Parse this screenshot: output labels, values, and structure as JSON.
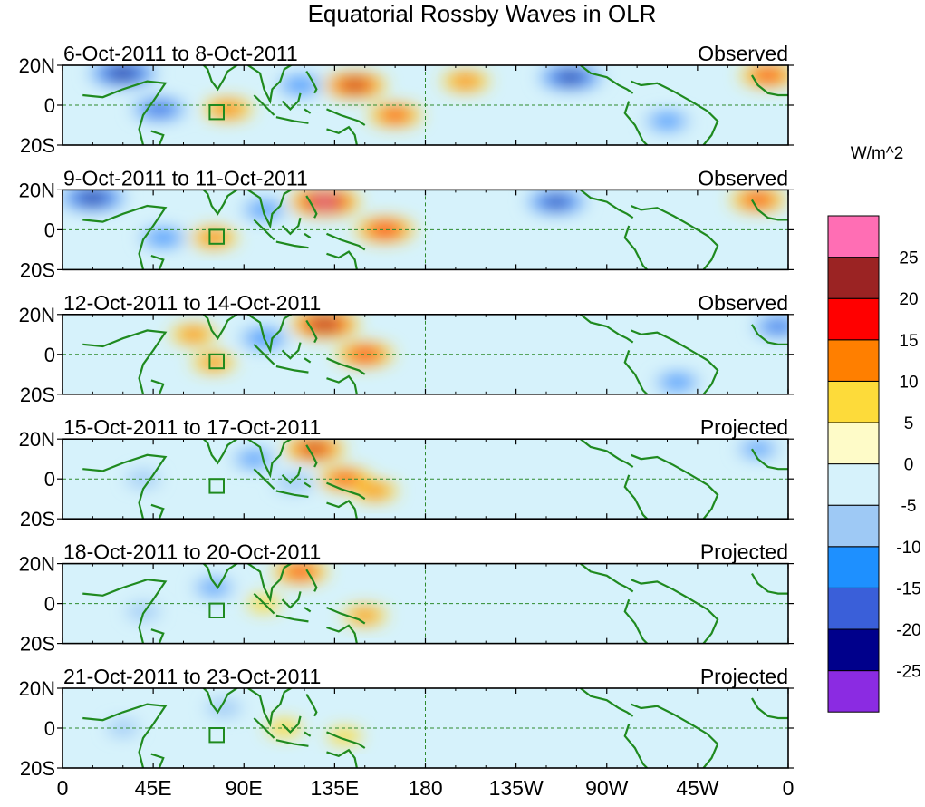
{
  "chart_data": {
    "type": "heatmap",
    "title": "Equatorial Rossby Waves in OLR",
    "units": "W/m^2",
    "x_ticks": [
      "0",
      "45E",
      "90E",
      "135E",
      "180",
      "135W",
      "90W",
      "45W",
      "0"
    ],
    "x_tick_values": [
      0,
      45,
      90,
      135,
      180,
      225,
      270,
      315,
      360
    ],
    "y_ticks": [
      "20N",
      "0",
      "20S"
    ],
    "y_tick_values": [
      20,
      0,
      -20
    ],
    "xlim": [
      0,
      360
    ],
    "ylim": [
      -20,
      20
    ],
    "colorbar": {
      "colors": [
        "#8b2be2",
        "#00008b",
        "#3a5fd9",
        "#1e90ff",
        "#9ec9f5",
        "#d6f2fb",
        "#fefbc8",
        "#fddb3a",
        "#ff7f00",
        "#ff0000",
        "#9b2323",
        "#ff6eb4"
      ],
      "labels": [
        "-25",
        "-20",
        "-15",
        "-10",
        "-5",
        "0",
        "5",
        "10",
        "15",
        "20",
        "25"
      ]
    },
    "box_marker": {
      "lon": [
        73,
        80
      ],
      "lat": [
        -7,
        0
      ]
    },
    "panels": [
      {
        "label": "6-Oct-2011 to 8-Oct-2011",
        "status": "Observed",
        "anomalies": [
          {
            "lon": 145,
            "lat": 10,
            "value": 21
          },
          {
            "lon": 165,
            "lat": -5,
            "value": 16
          },
          {
            "lon": 82,
            "lat": -2,
            "value": 14
          },
          {
            "lon": 30,
            "lat": 16,
            "value": -24
          },
          {
            "lon": 48,
            "lat": -2,
            "value": -17
          },
          {
            "lon": 252,
            "lat": 14,
            "value": -22
          },
          {
            "lon": 200,
            "lat": 12,
            "value": 13
          },
          {
            "lon": 350,
            "lat": 15,
            "value": 17
          },
          {
            "lon": 118,
            "lat": 10,
            "value": -13
          },
          {
            "lon": 300,
            "lat": -8,
            "value": -12
          }
        ]
      },
      {
        "label": "9-Oct-2011 to 11-Oct-2011",
        "status": "Observed",
        "anomalies": [
          {
            "lon": 130,
            "lat": 14,
            "value": 25
          },
          {
            "lon": 160,
            "lat": 0,
            "value": 19
          },
          {
            "lon": 75,
            "lat": -4,
            "value": 13
          },
          {
            "lon": 15,
            "lat": 16,
            "value": -23
          },
          {
            "lon": 245,
            "lat": 14,
            "value": -20
          },
          {
            "lon": 345,
            "lat": 15,
            "value": 17
          },
          {
            "lon": 100,
            "lat": 10,
            "value": -12
          },
          {
            "lon": 50,
            "lat": -4,
            "value": -13
          }
        ]
      },
      {
        "label": "12-Oct-2011 to 14-Oct-2011",
        "status": "Observed",
        "anomalies": [
          {
            "lon": 130,
            "lat": 15,
            "value": 24
          },
          {
            "lon": 150,
            "lat": 0,
            "value": 18
          },
          {
            "lon": 65,
            "lat": 10,
            "value": 12
          },
          {
            "lon": 75,
            "lat": -4,
            "value": 11
          },
          {
            "lon": 100,
            "lat": 8,
            "value": -14
          },
          {
            "lon": 355,
            "lat": 14,
            "value": -15
          },
          {
            "lon": 305,
            "lat": -14,
            "value": -12
          }
        ]
      },
      {
        "label": "15-Oct-2011 to 17-Oct-2011",
        "status": "Projected",
        "anomalies": [
          {
            "lon": 125,
            "lat": 15,
            "value": 20
          },
          {
            "lon": 140,
            "lat": 0,
            "value": 16
          },
          {
            "lon": 155,
            "lat": -6,
            "value": 12
          },
          {
            "lon": 95,
            "lat": 10,
            "value": -11
          },
          {
            "lon": 115,
            "lat": -2,
            "value": -9
          },
          {
            "lon": 40,
            "lat": 0,
            "value": -6
          },
          {
            "lon": 345,
            "lat": 15,
            "value": -10
          }
        ]
      },
      {
        "label": "18-Oct-2011 to 20-Oct-2011",
        "status": "Projected",
        "anomalies": [
          {
            "lon": 118,
            "lat": 16,
            "value": 17
          },
          {
            "lon": 150,
            "lat": -6,
            "value": 11
          },
          {
            "lon": 75,
            "lat": 8,
            "value": -10
          },
          {
            "lon": 100,
            "lat": 0,
            "value": 6
          },
          {
            "lon": 40,
            "lat": -4,
            "value": -6
          }
        ]
      },
      {
        "label": "21-Oct-2011 to 23-Oct-2011",
        "status": "Projected",
        "anomalies": [
          {
            "lon": 110,
            "lat": 0,
            "value": 7
          },
          {
            "lon": 80,
            "lat": 10,
            "value": -7
          },
          {
            "lon": 140,
            "lat": -4,
            "value": 6
          },
          {
            "lon": 30,
            "lat": 0,
            "value": -5
          }
        ]
      }
    ]
  }
}
